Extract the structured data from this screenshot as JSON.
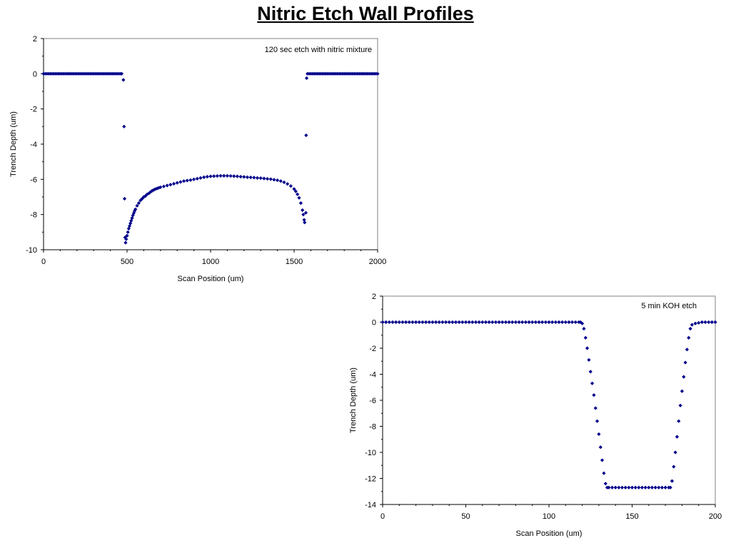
{
  "page": {
    "title": "Nitric Etch Wall Profiles"
  },
  "colors": {
    "marker": "#00008b",
    "axis": "#000000",
    "frame": "#808080",
    "background": "#ffffff"
  },
  "chart_data": [
    {
      "type": "scatter",
      "title": "",
      "annotation": "120 sec etch with nitric mixture",
      "xlabel": "Scan Position (um)",
      "ylabel": "Trench Depth (um)",
      "xlim": [
        0,
        2000
      ],
      "ylim": [
        -10,
        2
      ],
      "xticks": [
        0,
        500,
        1000,
        1500,
        2000
      ],
      "yticks": [
        2,
        0,
        -2,
        -4,
        -6,
        -8,
        -10
      ],
      "grid": false,
      "marker": "diamond",
      "points": [
        [
          0,
          0
        ],
        [
          10,
          0
        ],
        [
          20,
          0
        ],
        [
          30,
          0
        ],
        [
          40,
          0
        ],
        [
          50,
          0
        ],
        [
          60,
          0
        ],
        [
          70,
          0
        ],
        [
          80,
          0
        ],
        [
          90,
          0
        ],
        [
          100,
          0
        ],
        [
          110,
          0
        ],
        [
          120,
          0
        ],
        [
          130,
          0
        ],
        [
          140,
          0
        ],
        [
          150,
          0
        ],
        [
          160,
          0
        ],
        [
          170,
          0
        ],
        [
          180,
          0
        ],
        [
          190,
          0
        ],
        [
          200,
          0
        ],
        [
          210,
          0
        ],
        [
          220,
          0
        ],
        [
          230,
          0
        ],
        [
          240,
          0
        ],
        [
          250,
          0
        ],
        [
          260,
          0
        ],
        [
          270,
          0
        ],
        [
          280,
          0
        ],
        [
          290,
          0
        ],
        [
          300,
          0
        ],
        [
          310,
          0
        ],
        [
          320,
          0
        ],
        [
          330,
          0
        ],
        [
          340,
          0
        ],
        [
          350,
          0
        ],
        [
          360,
          0
        ],
        [
          370,
          0
        ],
        [
          380,
          0
        ],
        [
          390,
          0
        ],
        [
          400,
          0
        ],
        [
          410,
          0
        ],
        [
          420,
          0
        ],
        [
          430,
          0
        ],
        [
          440,
          0
        ],
        [
          450,
          0
        ],
        [
          460,
          0
        ],
        [
          468,
          0
        ],
        [
          478,
          -0.35
        ],
        [
          482,
          -3.0
        ],
        [
          485,
          -7.1
        ],
        [
          488,
          -9.3
        ],
        [
          491,
          -9.6
        ],
        [
          495,
          -9.4
        ],
        [
          500,
          -9.2
        ],
        [
          505,
          -9.0
        ],
        [
          510,
          -8.8
        ],
        [
          515,
          -8.65
        ],
        [
          520,
          -8.5
        ],
        [
          525,
          -8.35
        ],
        [
          530,
          -8.2
        ],
        [
          535,
          -8.05
        ],
        [
          540,
          -7.92
        ],
        [
          545,
          -7.8
        ],
        [
          550,
          -7.7
        ],
        [
          560,
          -7.5
        ],
        [
          570,
          -7.35
        ],
        [
          580,
          -7.2
        ],
        [
          590,
          -7.1
        ],
        [
          600,
          -7.0
        ],
        [
          610,
          -6.95
        ],
        [
          620,
          -6.85
        ],
        [
          630,
          -6.8
        ],
        [
          640,
          -6.72
        ],
        [
          650,
          -6.65
        ],
        [
          660,
          -6.6
        ],
        [
          670,
          -6.55
        ],
        [
          680,
          -6.52
        ],
        [
          690,
          -6.48
        ],
        [
          700,
          -6.45
        ],
        [
          720,
          -6.4
        ],
        [
          740,
          -6.35
        ],
        [
          760,
          -6.3
        ],
        [
          780,
          -6.25
        ],
        [
          800,
          -6.2
        ],
        [
          820,
          -6.15
        ],
        [
          840,
          -6.1
        ],
        [
          860,
          -6.07
        ],
        [
          880,
          -6.04
        ],
        [
          900,
          -6.0
        ],
        [
          920,
          -5.96
        ],
        [
          940,
          -5.92
        ],
        [
          960,
          -5.88
        ],
        [
          980,
          -5.85
        ],
        [
          1000,
          -5.83
        ],
        [
          1020,
          -5.82
        ],
        [
          1040,
          -5.81
        ],
        [
          1060,
          -5.8
        ],
        [
          1080,
          -5.8
        ],
        [
          1100,
          -5.8
        ],
        [
          1120,
          -5.81
        ],
        [
          1140,
          -5.82
        ],
        [
          1160,
          -5.83
        ],
        [
          1180,
          -5.85
        ],
        [
          1200,
          -5.86
        ],
        [
          1220,
          -5.88
        ],
        [
          1240,
          -5.89
        ],
        [
          1260,
          -5.9
        ],
        [
          1280,
          -5.92
        ],
        [
          1300,
          -5.93
        ],
        [
          1320,
          -5.95
        ],
        [
          1340,
          -5.97
        ],
        [
          1360,
          -5.99
        ],
        [
          1380,
          -6.02
        ],
        [
          1400,
          -6.05
        ],
        [
          1420,
          -6.1
        ],
        [
          1440,
          -6.17
        ],
        [
          1460,
          -6.26
        ],
        [
          1480,
          -6.38
        ],
        [
          1500,
          -6.55
        ],
        [
          1510,
          -6.68
        ],
        [
          1520,
          -6.85
        ],
        [
          1530,
          -7.05
        ],
        [
          1540,
          -7.35
        ],
        [
          1550,
          -7.75
        ],
        [
          1555,
          -8.0
        ],
        [
          1560,
          -8.3
        ],
        [
          1563,
          -8.45
        ],
        [
          1570,
          -7.9
        ],
        [
          1572,
          -3.5
        ],
        [
          1575,
          -0.25
        ],
        [
          1580,
          0
        ],
        [
          1590,
          0
        ],
        [
          1600,
          0
        ],
        [
          1610,
          0
        ],
        [
          1620,
          0
        ],
        [
          1630,
          0
        ],
        [
          1640,
          0
        ],
        [
          1650,
          0
        ],
        [
          1660,
          0
        ],
        [
          1670,
          0
        ],
        [
          1680,
          0
        ],
        [
          1690,
          0
        ],
        [
          1700,
          0
        ],
        [
          1710,
          0
        ],
        [
          1720,
          0
        ],
        [
          1730,
          0
        ],
        [
          1740,
          0
        ],
        [
          1750,
          0
        ],
        [
          1760,
          0
        ],
        [
          1770,
          0
        ],
        [
          1780,
          0
        ],
        [
          1790,
          0
        ],
        [
          1800,
          0
        ],
        [
          1810,
          0
        ],
        [
          1820,
          0
        ],
        [
          1830,
          0
        ],
        [
          1840,
          0
        ],
        [
          1850,
          0
        ],
        [
          1860,
          0
        ],
        [
          1870,
          0
        ],
        [
          1880,
          0
        ],
        [
          1890,
          0
        ],
        [
          1900,
          0
        ],
        [
          1910,
          0
        ],
        [
          1920,
          0
        ],
        [
          1930,
          0
        ],
        [
          1940,
          0
        ],
        [
          1950,
          0
        ],
        [
          1960,
          0
        ],
        [
          1970,
          0
        ],
        [
          1980,
          0
        ],
        [
          1990,
          0
        ],
        [
          2000,
          0
        ]
      ]
    },
    {
      "type": "scatter",
      "title": "",
      "annotation": "5 min KOH etch",
      "xlabel": "Scan Position (um)",
      "ylabel": "Trench Depth (um)",
      "xlim": [
        0,
        200
      ],
      "ylim": [
        -14,
        2
      ],
      "xticks": [
        0,
        50,
        100,
        150,
        200
      ],
      "yticks": [
        2,
        0,
        -2,
        -4,
        -6,
        -8,
        -10,
        -12,
        -14
      ],
      "grid": false,
      "marker": "diamond",
      "points": [
        [
          0,
          0
        ],
        [
          2,
          0
        ],
        [
          4,
          0
        ],
        [
          6,
          0
        ],
        [
          8,
          0
        ],
        [
          10,
          0
        ],
        [
          12,
          0
        ],
        [
          14,
          0
        ],
        [
          16,
          0
        ],
        [
          18,
          0
        ],
        [
          20,
          0
        ],
        [
          22,
          0
        ],
        [
          24,
          0
        ],
        [
          26,
          0
        ],
        [
          28,
          0
        ],
        [
          30,
          0
        ],
        [
          32,
          0
        ],
        [
          34,
          0
        ],
        [
          36,
          0
        ],
        [
          38,
          0
        ],
        [
          40,
          0
        ],
        [
          42,
          0
        ],
        [
          44,
          0
        ],
        [
          46,
          0
        ],
        [
          48,
          0
        ],
        [
          50,
          0
        ],
        [
          52,
          0
        ],
        [
          54,
          0
        ],
        [
          56,
          0
        ],
        [
          58,
          0
        ],
        [
          60,
          0
        ],
        [
          62,
          0
        ],
        [
          64,
          0
        ],
        [
          66,
          0
        ],
        [
          68,
          0
        ],
        [
          70,
          0
        ],
        [
          72,
          0
        ],
        [
          74,
          0
        ],
        [
          76,
          0
        ],
        [
          78,
          0
        ],
        [
          80,
          0
        ],
        [
          82,
          0
        ],
        [
          84,
          0
        ],
        [
          86,
          0
        ],
        [
          88,
          0
        ],
        [
          90,
          0
        ],
        [
          92,
          0
        ],
        [
          94,
          0
        ],
        [
          96,
          0
        ],
        [
          98,
          0
        ],
        [
          100,
          0
        ],
        [
          102,
          0
        ],
        [
          104,
          0
        ],
        [
          106,
          0
        ],
        [
          108,
          0
        ],
        [
          110,
          0
        ],
        [
          112,
          0
        ],
        [
          114,
          0
        ],
        [
          116,
          0
        ],
        [
          118,
          0
        ],
        [
          119,
          0
        ],
        [
          120,
          -0.1
        ],
        [
          121,
          -0.5
        ],
        [
          122,
          -1.2
        ],
        [
          123,
          -2.0
        ],
        [
          124,
          -2.9
        ],
        [
          125,
          -3.8
        ],
        [
          126,
          -4.7
        ],
        [
          127,
          -5.6
        ],
        [
          128,
          -6.6
        ],
        [
          129,
          -7.6
        ],
        [
          130,
          -8.6
        ],
        [
          131,
          -9.6
        ],
        [
          132,
          -10.6
        ],
        [
          133,
          -11.6
        ],
        [
          134,
          -12.4
        ],
        [
          135,
          -12.7
        ],
        [
          136,
          -12.7
        ],
        [
          138,
          -12.7
        ],
        [
          140,
          -12.7
        ],
        [
          142,
          -12.7
        ],
        [
          144,
          -12.7
        ],
        [
          146,
          -12.7
        ],
        [
          148,
          -12.7
        ],
        [
          150,
          -12.7
        ],
        [
          152,
          -12.7
        ],
        [
          154,
          -12.7
        ],
        [
          156,
          -12.7
        ],
        [
          158,
          -12.7
        ],
        [
          160,
          -12.7
        ],
        [
          162,
          -12.7
        ],
        [
          164,
          -12.7
        ],
        [
          166,
          -12.7
        ],
        [
          168,
          -12.7
        ],
        [
          170,
          -12.7
        ],
        [
          172,
          -12.7
        ],
        [
          173,
          -12.7
        ],
        [
          174,
          -12.2
        ],
        [
          175,
          -11.1
        ],
        [
          176,
          -10.0
        ],
        [
          177,
          -8.8
        ],
        [
          178,
          -7.6
        ],
        [
          179,
          -6.4
        ],
        [
          180,
          -5.3
        ],
        [
          181,
          -4.2
        ],
        [
          182,
          -3.1
        ],
        [
          183,
          -2.1
        ],
        [
          184,
          -1.2
        ],
        [
          185,
          -0.5
        ],
        [
          186,
          -0.2
        ],
        [
          188,
          -0.1
        ],
        [
          190,
          -0.05
        ],
        [
          192,
          0
        ],
        [
          194,
          0
        ],
        [
          196,
          0
        ],
        [
          198,
          0
        ],
        [
          200,
          0
        ]
      ]
    }
  ]
}
